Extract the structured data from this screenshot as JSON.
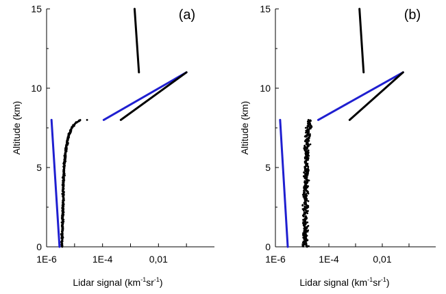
{
  "colors": {
    "measured": "#000000",
    "model": "#1f1fd0",
    "axis": "#000000"
  },
  "chart_data": [
    {
      "type": "scatter",
      "panel_label": "(a)",
      "xlabel": "Lidar signal (km",
      "xlabel_sup1": "-1",
      "xlabel_mid": "sr",
      "xlabel_sup2": "-1",
      "xlabel_end": ")",
      "ylabel": "Altitude (km)",
      "x_scale": "log",
      "xlim": [
        1e-06,
        1
      ],
      "ylim": [
        0,
        15
      ],
      "x_tick_values": [
        1e-06,
        0.0001,
        0.01
      ],
      "x_tick_labels": [
        "1E-6",
        "1E-4",
        "0,01"
      ],
      "y_tick_values": [
        0,
        5,
        10,
        15
      ],
      "y_tick_labels": [
        "0",
        "5",
        "10",
        "15"
      ],
      "grid": false,
      "legend": "none",
      "series": [
        {
          "style": "points",
          "color": "#000000",
          "profile": [
            [
              0,
              3.5e-06
            ],
            [
              2,
              3.8e-06
            ],
            [
              4,
              4e-06
            ],
            [
              5,
              4.2e-06
            ],
            [
              6,
              4.8e-06
            ],
            [
              7,
              6e-06
            ],
            [
              7.5,
              8e-06
            ],
            [
              7.8,
              1.1e-05
            ],
            [
              8.0,
              1.6e-05
            ]
          ],
          "jitter": 0.03,
          "extra_points": [
            [
              2.8e-05,
              8.0
            ]
          ]
        },
        {
          "style": "line",
          "color": "#1f1fd0",
          "points": [
            [
              1.5e-06,
              8.0
            ],
            [
              2.9e-06,
              0.0
            ]
          ]
        },
        {
          "style": "line",
          "color": "#1f1fd0",
          "points": [
            [
              0.00011,
              8.0
            ],
            [
              0.1,
              11.0
            ]
          ]
        },
        {
          "style": "line",
          "color": "#000000",
          "points": [
            [
              0.00045,
              8.0
            ],
            [
              0.1,
              11.0
            ]
          ]
        },
        {
          "style": "line",
          "color": "#000000",
          "points": [
            [
              0.0014,
              15.0
            ],
            [
              0.002,
              11.0
            ]
          ]
        }
      ]
    },
    {
      "type": "scatter",
      "panel_label": "(b)",
      "xlabel": "Lidar signal (km",
      "xlabel_sup1": "-1",
      "xlabel_mid": "sr",
      "xlabel_sup2": "-1",
      "xlabel_end": ")",
      "ylabel": "Altitude (km)",
      "x_scale": "log",
      "xlim": [
        1e-06,
        1
      ],
      "ylim": [
        0,
        15
      ],
      "x_tick_values": [
        1e-06,
        0.0001,
        0.01
      ],
      "x_tick_labels": [
        "1E-6",
        "1E-4",
        "0,01"
      ],
      "y_tick_values": [
        0,
        5,
        10,
        15
      ],
      "y_tick_labels": [
        "0",
        "5",
        "10",
        "15"
      ],
      "grid": false,
      "legend": "none",
      "series": [
        {
          "style": "points",
          "color": "#000000",
          "profile": [
            [
              0,
              1.3e-05
            ],
            [
              2,
              1.3e-05
            ],
            [
              4,
              1.35e-05
            ],
            [
              6,
              1.45e-05
            ],
            [
              7,
              1.6e-05
            ],
            [
              8.0,
              2e-05
            ]
          ],
          "jitter": 0.1
        },
        {
          "style": "line",
          "color": "#1f1fd0",
          "points": [
            [
              1.5e-06,
              8.0
            ],
            [
              2.9e-06,
              0.0
            ]
          ]
        },
        {
          "style": "line",
          "color": "#1f1fd0",
          "points": [
            [
              4e-05,
              8.0
            ],
            [
              0.06,
              11.0
            ]
          ]
        },
        {
          "style": "line",
          "color": "#000000",
          "points": [
            [
              0.0006,
              8.0
            ],
            [
              0.06,
              11.0
            ]
          ]
        },
        {
          "style": "line",
          "color": "#000000",
          "points": [
            [
              0.0014,
              15.0
            ],
            [
              0.002,
              11.0
            ]
          ]
        }
      ]
    }
  ]
}
